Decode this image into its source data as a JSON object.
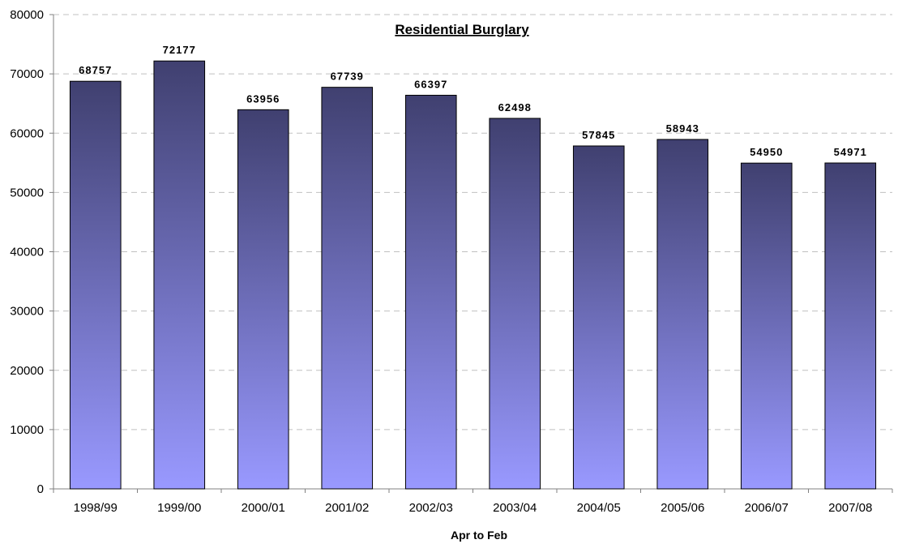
{
  "chart_data": {
    "type": "bar",
    "title": "Residential Burglary",
    "xlabel": "Apr to Feb",
    "ylabel": "",
    "categories": [
      "1998/99",
      "1999/00",
      "2000/01",
      "2001/02",
      "2002/03",
      "2003/04",
      "2004/05",
      "2005/06",
      "2006/07",
      "2007/08"
    ],
    "values": [
      68757,
      72177,
      63956,
      67739,
      66397,
      62498,
      57845,
      58943,
      54950,
      54971
    ],
    "data_labels": [
      "68757",
      "72177",
      "63956",
      "67739",
      "66397",
      "62498",
      "57845",
      "58943",
      "54950",
      "54971"
    ],
    "ylim": [
      0,
      80000
    ],
    "yticks": [
      0,
      10000,
      20000,
      30000,
      40000,
      50000,
      60000,
      70000,
      80000
    ],
    "ytick_labels": [
      "0",
      "10000",
      "20000",
      "30000",
      "40000",
      "50000",
      "60000",
      "70000",
      "80000"
    ],
    "grid": true,
    "legend": "none",
    "colors": {
      "bar_top": "#404070",
      "bar_bottom": "#9999FF",
      "bar_outline": "#000000",
      "grid": "#C0C0C0",
      "axis": "#808080"
    }
  }
}
